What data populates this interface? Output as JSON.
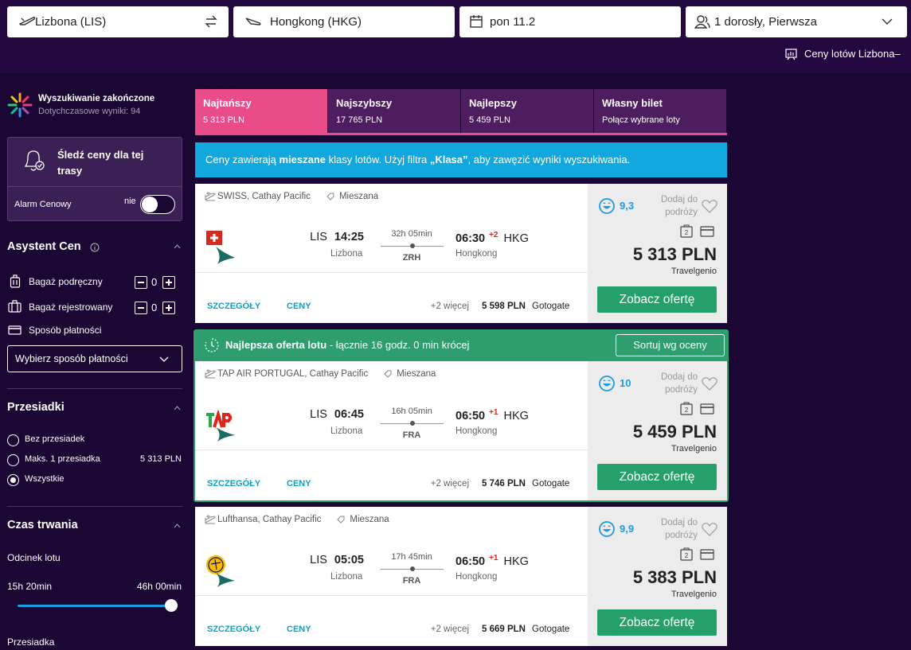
{
  "search": {
    "from": "Lizbona (LIS)",
    "to": "Hongkong (HKG)",
    "date": "pon 11.2",
    "passengers": "1 dorosły, Pierwsza"
  },
  "price_link": "Ceny lotów Lizbona–",
  "status": {
    "title": "Wyszukiwanie zakończone",
    "subtitle": "Dotychczasowe wyniki: 94"
  },
  "track": {
    "title": "Śledź ceny dla tej trasy",
    "alarm": "Alarm Cenowy",
    "toggle": "nie"
  },
  "assistant": {
    "title": "Asystent Cen",
    "hand_bag": "Bagaż podręczny",
    "hand_bag_count": "0",
    "checked_bag": "Bagaż rejestrowany",
    "checked_bag_count": "0",
    "payment": "Sposób płatności",
    "payment_select": "Wybierz sposób płatności"
  },
  "stops": {
    "title": "Przesiadki",
    "options": [
      {
        "label": "Bez przesiadek"
      },
      {
        "label": "Maks. 1 przesiadka",
        "price": "5 313 PLN"
      },
      {
        "label": "Wszystkie"
      }
    ]
  },
  "duration": {
    "title": "Czas trwania",
    "leg": "Odcinek lotu",
    "min": "15h 20min",
    "max": "46h 00min",
    "layover": "Przesiadka"
  },
  "tabs": [
    {
      "title": "Najtańszy",
      "sub": "5 313 PLN"
    },
    {
      "title": "Najszybszy",
      "sub": "17 765 PLN"
    },
    {
      "title": "Najlepszy",
      "sub": "5 459 PLN"
    },
    {
      "title": "Własny bilet",
      "sub": "Połącz wybrane loty"
    }
  ],
  "notice": {
    "a": "Ceny zawierają ",
    "b": "mieszane",
    "c": " klasy lotów. Użyj filtra ",
    "d": "„Klasa”",
    "e": ", aby zawęzić wyniki wyszukiwania."
  },
  "best_banner": {
    "title": "Najlepsza oferta lotu",
    "text": " - łącznie 16 godz. 0 min krócej",
    "button": "Sortuj wg oceny"
  },
  "results": [
    {
      "airlines": "SWISS, Cathay Pacific",
      "cabin": "Mieszana",
      "dep_code": "LIS",
      "dep_time": "14:25",
      "dep_city": "Lizbona",
      "duration": "32h 05min",
      "via": "ZRH",
      "arr_time": "06:30",
      "day_offset": "+2",
      "arr_code": "HKG",
      "arr_city": "Hongkong",
      "details": "SZCZEGÓŁY",
      "prices": "CENY",
      "more": "+2 więcej",
      "alt_price": "5 598 PLN",
      "alt_vendor": "Gotogate",
      "score": "9,3",
      "add": "Dodaj do podróży",
      "price": "5 313 PLN",
      "vendor": "Travelgenio",
      "button": "Zobacz ofertę"
    },
    {
      "airlines": "TAP AIR PORTUGAL, Cathay Pacific",
      "cabin": "Mieszana",
      "dep_code": "LIS",
      "dep_time": "06:45",
      "dep_city": "Lizbona",
      "duration": "16h 05min",
      "via": "FRA",
      "arr_time": "06:50",
      "day_offset": "+1",
      "arr_code": "HKG",
      "arr_city": "Hongkong",
      "details": "SZCZEGÓŁY",
      "prices": "CENY",
      "more": "+2 więcej",
      "alt_price": "5 746 PLN",
      "alt_vendor": "Gotogate",
      "score": "10",
      "add": "Dodaj do podróży",
      "price": "5 459 PLN",
      "vendor": "Travelgenio",
      "button": "Zobacz ofertę"
    },
    {
      "airlines": "Lufthansa, Cathay Pacific",
      "cabin": "Mieszana",
      "dep_code": "LIS",
      "dep_time": "05:05",
      "dep_city": "Lizbona",
      "duration": "17h 45min",
      "via": "FRA",
      "arr_time": "06:50",
      "day_offset": "+1",
      "arr_code": "HKG",
      "arr_city": "Hongkong",
      "details": "SZCZEGÓŁY",
      "prices": "CENY",
      "more": "+2 więcej",
      "alt_price": "5 669 PLN",
      "alt_vendor": "Gotogate",
      "score": "9,9",
      "add": "Dodaj do podróży",
      "price": "5 383 PLN",
      "vendor": "Travelgenio",
      "button": "Zobacz ofertę"
    }
  ]
}
